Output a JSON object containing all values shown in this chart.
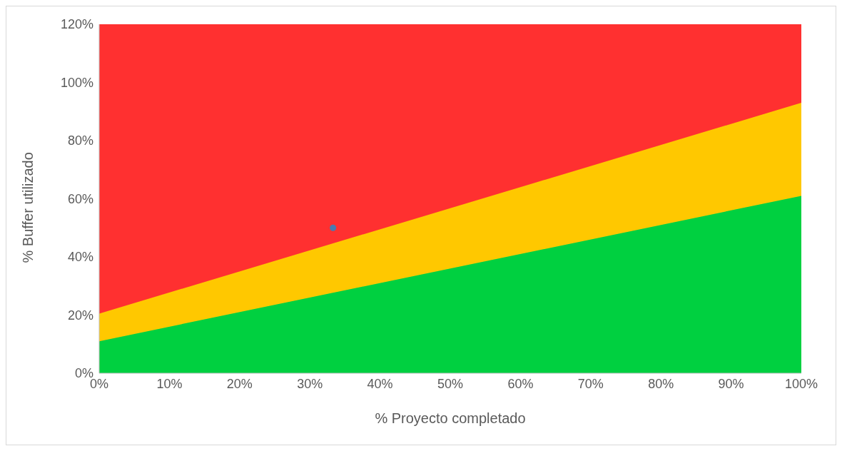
{
  "chart_data": {
    "type": "area",
    "stacked": true,
    "x": [
      0,
      100
    ],
    "xlabel": "% Proyecto completado",
    "ylabel": "% Buffer utilizado",
    "xlim": [
      0,
      100
    ],
    "ylim": [
      0,
      120
    ],
    "xticks": [
      {
        "value": 0,
        "label": "0%"
      },
      {
        "value": 10,
        "label": "10%"
      },
      {
        "value": 20,
        "label": "20%"
      },
      {
        "value": 30,
        "label": "30%"
      },
      {
        "value": 40,
        "label": "40%"
      },
      {
        "value": 50,
        "label": "50%"
      },
      {
        "value": 60,
        "label": "60%"
      },
      {
        "value": 70,
        "label": "70%"
      },
      {
        "value": 80,
        "label": "80%"
      },
      {
        "value": 90,
        "label": "90%"
      },
      {
        "value": 100,
        "label": "100%"
      }
    ],
    "yticks": [
      {
        "value": 0,
        "label": "0%"
      },
      {
        "value": 20,
        "label": "20%"
      },
      {
        "value": 40,
        "label": "40%"
      },
      {
        "value": 60,
        "label": "60%"
      },
      {
        "value": 80,
        "label": "80%"
      },
      {
        "value": 100,
        "label": "100%"
      },
      {
        "value": 120,
        "label": "120%"
      }
    ],
    "series": [
      {
        "color": "#00d040",
        "values": [
          11,
          61
        ]
      },
      {
        "color": "#ffc800",
        "values": [
          9.5,
          32
        ]
      },
      {
        "color": "#ff3030",
        "values": [
          99.5,
          27
        ]
      },
      {
        "type": "scatter",
        "color": "#4a7ab0",
        "marker": "circle",
        "x": [
          33.3
        ],
        "values": [
          50
        ]
      }
    ],
    "grid": false,
    "legend": false
  }
}
